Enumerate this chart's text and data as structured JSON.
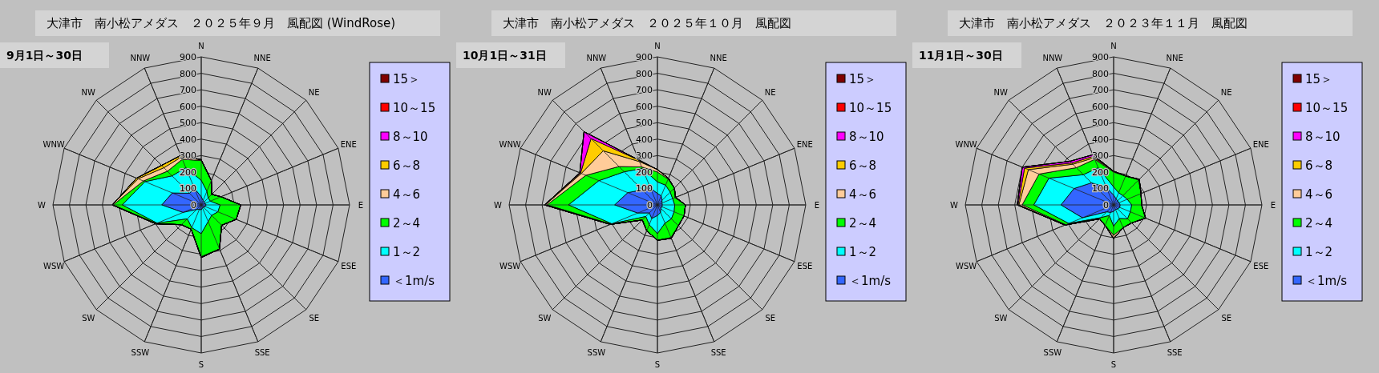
{
  "chart_data": [
    {
      "type": "radar",
      "title": "大津市　南小松アメダス　２０２５年９月　風配図 (WindRose)",
      "subtitle": "9月1日～30日",
      "categories": [
        "N",
        "NNE",
        "NE",
        "ENE",
        "E",
        "ESE",
        "SE",
        "SSE",
        "S",
        "SSW",
        "SW",
        "WSW",
        "W",
        "WNW",
        "NW",
        "NNW"
      ],
      "ylim": [
        0,
        900
      ],
      "yticks": [
        0,
        100,
        200,
        300,
        400,
        500,
        600,
        700,
        800,
        900
      ],
      "grid": true,
      "legend": "right",
      "series": [
        {
          "name": "＜1m/s",
          "color": "#3366ff",
          "values": [
            50,
            30,
            25,
            25,
            30,
            25,
            20,
            20,
            30,
            30,
            40,
            120,
            240,
            190,
            100,
            110
          ]
        },
        {
          "name": "1～2",
          "color": "#00ffff",
          "values": [
            150,
            90,
            60,
            60,
            115,
            110,
            90,
            110,
            175,
            150,
            120,
            290,
            480,
            370,
            250,
            245
          ]
        },
        {
          "name": "2～4",
          "color": "#00ff00",
          "values": [
            270,
            160,
            90,
            130,
            240,
            230,
            175,
            290,
            315,
            160,
            170,
            295,
            535,
            380,
            290,
            300
          ]
        },
        {
          "name": "4～6",
          "color": "#ffcc99",
          "values": [
            275,
            160,
            90,
            130,
            240,
            230,
            175,
            290,
            320,
            160,
            170,
            300,
            540,
            415,
            320,
            315
          ]
        },
        {
          "name": "6～8",
          "color": "#ffcc00",
          "values": [
            275,
            160,
            90,
            130,
            240,
            230,
            175,
            290,
            320,
            160,
            170,
            300,
            540,
            425,
            340,
            325
          ]
        },
        {
          "name": "8～10",
          "color": "#ff00ff",
          "values": [
            null,
            null,
            null,
            null,
            null,
            null,
            null,
            null,
            null,
            null,
            null,
            null,
            null,
            null,
            null,
            null
          ]
        },
        {
          "name": "10～15",
          "color": "#ff0000",
          "values": [
            null,
            null,
            null,
            null,
            null,
            null,
            null,
            null,
            null,
            null,
            null,
            null,
            null,
            null,
            null,
            null
          ]
        },
        {
          "name": "15＞",
          "color": "#800000",
          "values": [
            null,
            null,
            null,
            null,
            null,
            null,
            null,
            null,
            null,
            null,
            null,
            null,
            null,
            null,
            null,
            null
          ]
        }
      ]
    },
    {
      "type": "radar",
      "title": "大津市　南小松アメダス　２０２５年１０月　風配図",
      "subtitle": "10月1日～31日",
      "categories": [
        "N",
        "NNE",
        "NE",
        "ENE",
        "E",
        "ESE",
        "SE",
        "SSE",
        "S",
        "SSW",
        "SW",
        "WSW",
        "W",
        "WNW",
        "NW",
        "NNW"
      ],
      "ylim": [
        0,
        900
      ],
      "yticks": [
        0,
        100,
        200,
        300,
        400,
        500,
        600,
        700,
        800,
        900
      ],
      "grid": true,
      "legend": "right",
      "series": [
        {
          "name": "＜1m/s",
          "color": "#3366ff",
          "values": [
            70,
            60,
            40,
            30,
            30,
            30,
            30,
            50,
            65,
            90,
            70,
            130,
            260,
            195,
            130,
            110
          ]
        },
        {
          "name": "1～2",
          "color": "#00ffff",
          "values": [
            140,
            130,
            110,
            100,
            105,
            110,
            120,
            120,
            175,
            130,
            100,
            300,
            540,
            385,
            285,
            240
          ]
        },
        {
          "name": "2～4",
          "color": "#00ff00",
          "values": [
            200,
            170,
            145,
            115,
            170,
            175,
            180,
            215,
            215,
            170,
            130,
            305,
            670,
            470,
            330,
            250
          ]
        },
        {
          "name": "4～6",
          "color": "#ffcc99",
          "values": [
            215,
            175,
            145,
            120,
            170,
            175,
            180,
            220,
            215,
            170,
            130,
            310,
            680,
            500,
            465,
            285
          ]
        },
        {
          "name": "6～8",
          "color": "#ffcc00",
          "values": [
            215,
            175,
            145,
            120,
            170,
            175,
            180,
            220,
            215,
            170,
            130,
            310,
            685,
            505,
            570,
            295
          ]
        },
        {
          "name": "8～10",
          "color": "#ff00ff",
          "values": [
            215,
            175,
            145,
            120,
            170,
            175,
            180,
            220,
            215,
            170,
            130,
            310,
            685,
            510,
            630,
            295
          ]
        },
        {
          "name": "10～15",
          "color": "#ff0000",
          "values": [
            null,
            null,
            null,
            null,
            null,
            null,
            null,
            null,
            null,
            null,
            null,
            null,
            null,
            null,
            null,
            null
          ]
        },
        {
          "name": "15＞",
          "color": "#800000",
          "values": [
            null,
            null,
            null,
            null,
            null,
            null,
            null,
            null,
            null,
            null,
            null,
            null,
            null,
            null,
            null,
            null
          ]
        }
      ]
    },
    {
      "type": "radar",
      "title": "大津市　南小松アメダス　２０２３年１１月　風配図",
      "subtitle": "11月1日～30日",
      "categories": [
        "N",
        "NNE",
        "NE",
        "ENE",
        "E",
        "ESE",
        "SE",
        "SSE",
        "S",
        "SSW",
        "SW",
        "WSW",
        "W",
        "WNW",
        "NW",
        "NNW"
      ],
      "ylim": [
        0,
        900
      ],
      "yticks": [
        0,
        100,
        200,
        300,
        400,
        500,
        600,
        700,
        800,
        900
      ],
      "grid": true,
      "legend": "right",
      "series": [
        {
          "name": "＜1m/s",
          "color": "#3366ff",
          "values": [
            60,
            40,
            35,
            35,
            40,
            40,
            35,
            30,
            40,
            50,
            60,
            205,
            320,
            260,
            190,
            115
          ]
        },
        {
          "name": "1～2",
          "color": "#00ffff",
          "values": [
            110,
            80,
            80,
            90,
            110,
            110,
            120,
            90,
            130,
            70,
            110,
            295,
            485,
            425,
            260,
            245
          ]
        },
        {
          "name": "2～4",
          "color": "#00ff00",
          "values": [
            200,
            190,
            215,
            180,
            170,
            210,
            155,
            150,
            185,
            135,
            120,
            315,
            555,
            490,
            320,
            300
          ]
        },
        {
          "name": "4～6",
          "color": "#ffcc99",
          "values": [
            205,
            190,
            220,
            180,
            170,
            210,
            155,
            150,
            205,
            135,
            120,
            320,
            575,
            560,
            350,
            310
          ]
        },
        {
          "name": "6～8",
          "color": "#ffcc00",
          "values": [
            205,
            190,
            220,
            180,
            170,
            210,
            155,
            150,
            205,
            135,
            120,
            320,
            580,
            585,
            360,
            320
          ]
        },
        {
          "name": "8～10",
          "color": "#ff00ff",
          "values": [
            205,
            190,
            220,
            180,
            170,
            210,
            155,
            150,
            205,
            135,
            120,
            320,
            585,
            600,
            375,
            330
          ]
        },
        {
          "name": "10～15",
          "color": "#ff0000",
          "values": [
            null,
            null,
            null,
            null,
            null,
            null,
            null,
            null,
            null,
            null,
            null,
            null,
            null,
            null,
            null,
            null
          ]
        },
        {
          "name": "15＞",
          "color": "#800000",
          "values": [
            null,
            null,
            null,
            null,
            null,
            null,
            null,
            null,
            null,
            null,
            null,
            null,
            null,
            null,
            null,
            null
          ]
        }
      ]
    }
  ]
}
